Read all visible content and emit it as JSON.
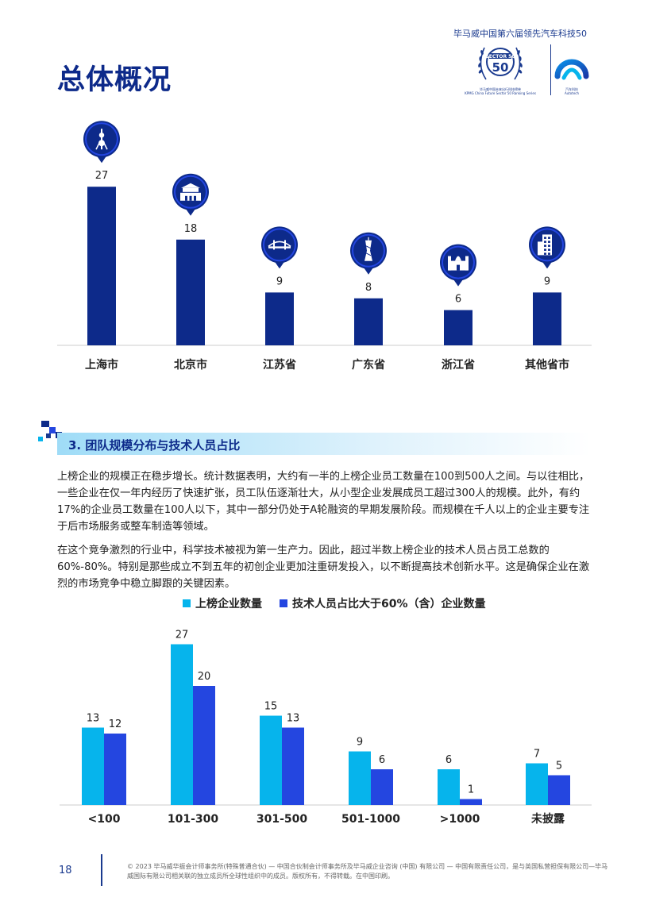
{
  "header": {
    "caption": "毕马威中国第六届领先汽车科技50",
    "seal_text": "SECTOR 50",
    "seal_caption_cn": "毕马威中国未来出行科技榜单",
    "seal_caption_en": "KPMG China Future Sector 50 Ranking Series",
    "auto_caption_cn": "汽车科技",
    "auto_caption_en": "Autotech"
  },
  "page_title": "总体概况",
  "colors": {
    "navy": "#0d2a8a",
    "royal": "#2446e0",
    "cyan": "#06b4ec"
  },
  "chart_data": [
    {
      "type": "bar",
      "categories": [
        "上海市",
        "北京市",
        "江苏省",
        "广东省",
        "浙江省",
        "其他省市"
      ],
      "values": [
        27,
        18,
        9,
        8,
        6,
        9
      ],
      "icons": [
        "oriental-pearl-tower-icon",
        "tiananmen-gate-icon",
        "bridge-icon",
        "canton-tower-icon",
        "temple-icon",
        "skyscraper-icon"
      ],
      "bar_color": "#0d2a8a"
    },
    {
      "type": "bar",
      "categories": [
        "<100",
        "101-300",
        "301-500",
        "501-1000",
        ">1000",
        "未披露"
      ],
      "series": [
        {
          "name": "上榜企业数量",
          "values": [
            13,
            27,
            15,
            9,
            6,
            7
          ],
          "color": "#06b4ec"
        },
        {
          "name": "技术人员占比大于60%（含）企业数量",
          "values": [
            12,
            20,
            13,
            6,
            1,
            5
          ],
          "color": "#2446e0"
        }
      ],
      "legend": "top"
    }
  ],
  "section": {
    "title": "3. 团队规模分布与技术人员占比"
  },
  "paragraphs": [
    "上榜企业的规模正在稳步增长。统计数据表明，大约有一半的上榜企业员工数量在100到500人之间。与以往相比，一些企业在仅一年内经历了快速扩张，员工队伍逐渐壮大，从小型企业发展成员工超过300人的规模。此外，有约17%的企业员工数量在100人以下，其中一部分仍处于A轮融资的早期发展阶段。而规模在千人以上的企业主要专注于后市场服务或整车制造等领域。",
    "在这个竞争激烈的行业中，科学技术被视为第一生产力。因此，超过半数上榜企业的技术人员占员工总数的60%-80%。特别是那些成立不到五年的初创企业更加注重研发投入，以不断提高技术创新水平。这是确保企业在激烈的市场竞争中稳立脚跟的关键因素。"
  ],
  "footer": {
    "page_number": "18",
    "copyright": "© 2023 毕马威华振会计师事务所(特殊普通合伙) — 中国合伙制会计师事务所及毕马威企业咨询 (中国) 有限公司 — 中国有限责任公司，是与英国私营担保有限公司—毕马威国际有限公司相关联的独立成员所全球性组织中的成员。版权所有，不得转载。在中国印刷。"
  }
}
